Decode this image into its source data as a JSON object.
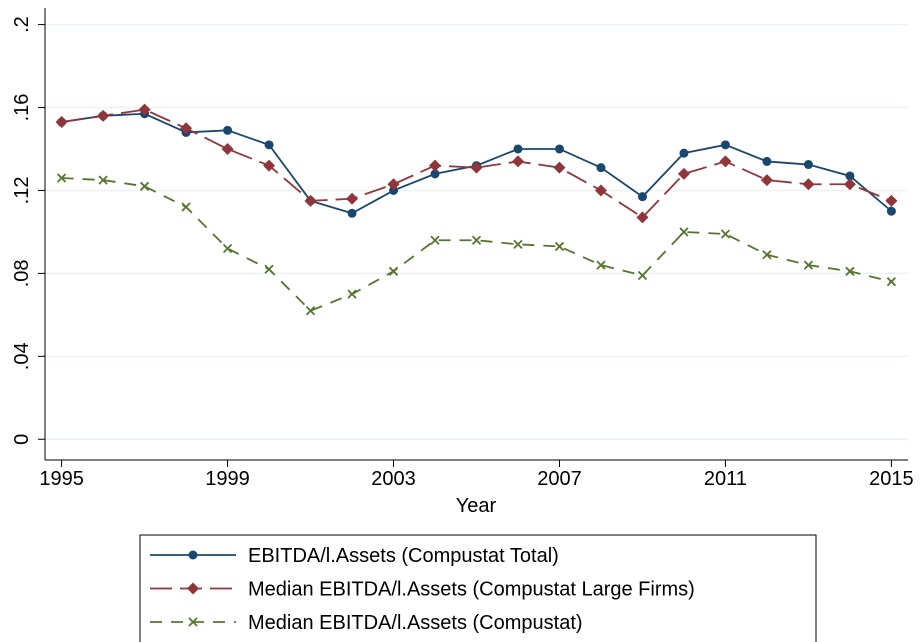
{
  "chart_data": {
    "type": "line",
    "x_label": "Year",
    "x": [
      1995,
      1996,
      1997,
      1998,
      1999,
      2000,
      2001,
      2002,
      2003,
      2004,
      2005,
      2006,
      2007,
      2008,
      2009,
      2010,
      2011,
      2012,
      2013,
      2014,
      2015
    ],
    "xlim": [
      1994.6,
      2015.4
    ],
    "xticks": [
      1995,
      1999,
      2003,
      2007,
      2011,
      2015
    ],
    "ylim": [
      -0.01,
      0.208
    ],
    "yticks": [
      0,
      {
        "value": 0.04,
        "label": ".04"
      },
      {
        "value": 0.08,
        "label": ".08"
      },
      {
        "value": 0.12,
        "label": ".12"
      },
      {
        "value": 0.16,
        "label": ".16"
      },
      {
        "value": 0.2,
        "label": ".2"
      }
    ],
    "grid": true,
    "legend": "bottom",
    "series": [
      {
        "name": "EBITDA/l.Assets (Compustat Total)",
        "color": "#1a476f",
        "marker": "circle",
        "line_style": "solid",
        "values": [
          0.153,
          0.156,
          0.157,
          0.148,
          0.149,
          0.142,
          0.115,
          0.109,
          0.12,
          0.128,
          0.132,
          0.14,
          0.14,
          0.131,
          0.117,
          0.138,
          0.142,
          0.134,
          0.1325,
          0.127,
          0.11
        ]
      },
      {
        "name": "Median EBITDA/l.Assets (Compustat Large Firms)",
        "color": "#90353b",
        "marker": "diamond",
        "line_style": "longdash",
        "values": [
          0.153,
          0.156,
          0.159,
          0.15,
          0.14,
          0.132,
          0.115,
          0.116,
          0.123,
          0.132,
          0.131,
          0.134,
          0.131,
          0.12,
          0.107,
          0.128,
          0.134,
          0.125,
          0.123,
          0.123,
          0.115
        ]
      },
      {
        "name": "Median EBITDA/l.Assets (Compustat)",
        "color": "#55752f",
        "marker": "x",
        "line_style": "dash",
        "values": [
          0.126,
          0.125,
          0.122,
          0.112,
          0.092,
          0.082,
          0.062,
          0.07,
          0.081,
          0.096,
          0.096,
          0.094,
          0.093,
          0.084,
          0.079,
          0.1,
          0.099,
          0.089,
          0.084,
          0.081,
          0.076
        ]
      }
    ]
  }
}
